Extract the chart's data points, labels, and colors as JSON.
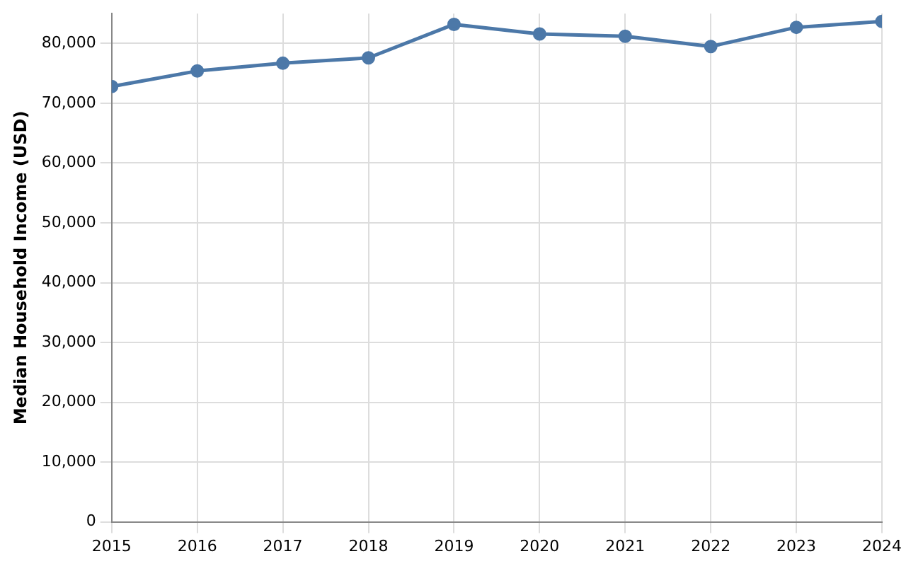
{
  "chart_data": {
    "type": "line",
    "ylabel": "Median Household Income (USD)",
    "x": [
      2015,
      2016,
      2017,
      2018,
      2019,
      2020,
      2021,
      2022,
      2023,
      2024
    ],
    "series": [
      {
        "color": "#4c78a8",
        "values": [
          72800,
          75400,
          76700,
          77600,
          83200,
          81600,
          81200,
          79500,
          82700,
          83700
        ]
      }
    ],
    "xlim": [
      2015,
      2024
    ],
    "xticks": [
      2015,
      2016,
      2017,
      2018,
      2019,
      2020,
      2021,
      2022,
      2023,
      2024
    ],
    "ylim": [
      0,
      85000
    ],
    "yticks": [
      0,
      {
        "value": 10000,
        "label": "10,000"
      },
      {
        "value": 20000,
        "label": "20,000"
      },
      {
        "value": 30000,
        "label": "30,000"
      },
      {
        "value": 40000,
        "label": "40,000"
      },
      {
        "value": 50000,
        "label": "50,000"
      },
      {
        "value": 60000,
        "label": "60,000"
      },
      {
        "value": 70000,
        "label": "70,000"
      },
      {
        "value": 80000,
        "label": "80,000"
      }
    ],
    "grid": true,
    "legend": false,
    "marker": "circle",
    "line_style": "solid"
  }
}
